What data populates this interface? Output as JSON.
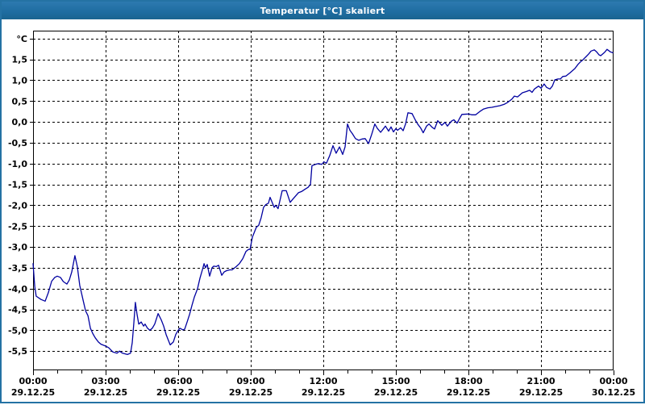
{
  "window": {
    "title": "Temperatur [°C] skaliert"
  },
  "colors": {
    "titlebar": "#1e6ca0",
    "window_border": "#2472a4",
    "line": "#0000a0",
    "grid": "#000000",
    "text": "#000000",
    "plot_background": "#ffffff"
  },
  "chart_data": {
    "type": "line",
    "title": "Temperatur [°C] skaliert",
    "xlabel": "",
    "ylabel": "",
    "y_axis_unit": "°C",
    "ylim": [
      -5.96,
      2.19
    ],
    "xlim_hours": [
      0,
      24
    ],
    "grid": "dashed",
    "legend": "none",
    "y_ticks": [
      {
        "value": 2.0,
        "label": "°C"
      },
      {
        "value": 1.5,
        "label": "1,5"
      },
      {
        "value": 1.0,
        "label": "1,0"
      },
      {
        "value": 0.5,
        "label": "0,5"
      },
      {
        "value": 0.0,
        "label": "0,0"
      },
      {
        "value": -0.5,
        "label": "-0,5"
      },
      {
        "value": -1.0,
        "label": "-1,0"
      },
      {
        "value": -1.5,
        "label": "-1,5"
      },
      {
        "value": -2.0,
        "label": "-2,0"
      },
      {
        "value": -2.5,
        "label": "-2,5"
      },
      {
        "value": -3.0,
        "label": "-3,0"
      },
      {
        "value": -3.5,
        "label": "-3,5"
      },
      {
        "value": -4.0,
        "label": "-4,0"
      },
      {
        "value": -4.5,
        "label": "-4,5"
      },
      {
        "value": -5.0,
        "label": "-5,0"
      },
      {
        "value": -5.5,
        "label": "-5,5"
      }
    ],
    "x_ticks": [
      {
        "hour": 0,
        "time": "00:00",
        "date": "29.12.25"
      },
      {
        "hour": 3,
        "time": "03:00",
        "date": "29.12.25"
      },
      {
        "hour": 6,
        "time": "06:00",
        "date": "29.12.25"
      },
      {
        "hour": 9,
        "time": "09:00",
        "date": "29.12.25"
      },
      {
        "hour": 12,
        "time": "12:00",
        "date": "29.12.25"
      },
      {
        "hour": 15,
        "time": "15:00",
        "date": "29.12.25"
      },
      {
        "hour": 18,
        "time": "18:00",
        "date": "29.12.25"
      },
      {
        "hour": 21,
        "time": "21:00",
        "date": "29.12.25"
      },
      {
        "hour": 24,
        "time": "00:00",
        "date": "30.12.25"
      }
    ],
    "minor_tick_every_hours": 1,
    "series": [
      {
        "name": "Temperatur",
        "points": [
          [
            0.0,
            -3.4
          ],
          [
            0.07,
            -3.95
          ],
          [
            0.13,
            -4.18
          ],
          [
            0.33,
            -4.26
          ],
          [
            0.5,
            -4.3
          ],
          [
            0.63,
            -4.1
          ],
          [
            0.77,
            -3.82
          ],
          [
            0.9,
            -3.73
          ],
          [
            1.0,
            -3.7
          ],
          [
            1.13,
            -3.73
          ],
          [
            1.25,
            -3.83
          ],
          [
            1.4,
            -3.89
          ],
          [
            1.5,
            -3.79
          ],
          [
            1.6,
            -3.6
          ],
          [
            1.73,
            -3.21
          ],
          [
            1.83,
            -3.47
          ],
          [
            1.93,
            -3.92
          ],
          [
            2.07,
            -4.28
          ],
          [
            2.17,
            -4.53
          ],
          [
            2.27,
            -4.65
          ],
          [
            2.37,
            -4.95
          ],
          [
            2.47,
            -5.08
          ],
          [
            2.57,
            -5.18
          ],
          [
            2.7,
            -5.28
          ],
          [
            2.8,
            -5.33
          ],
          [
            3.0,
            -5.38
          ],
          [
            3.13,
            -5.42
          ],
          [
            3.3,
            -5.52
          ],
          [
            3.47,
            -5.55
          ],
          [
            3.57,
            -5.5
          ],
          [
            3.7,
            -5.55
          ],
          [
            3.9,
            -5.58
          ],
          [
            4.03,
            -5.55
          ],
          [
            4.1,
            -5.3
          ],
          [
            4.17,
            -4.8
          ],
          [
            4.23,
            -4.33
          ],
          [
            4.3,
            -4.62
          ],
          [
            4.37,
            -4.85
          ],
          [
            4.47,
            -4.8
          ],
          [
            4.57,
            -4.9
          ],
          [
            4.63,
            -4.85
          ],
          [
            4.73,
            -4.95
          ],
          [
            4.83,
            -5.0
          ],
          [
            4.93,
            -4.95
          ],
          [
            5.03,
            -4.85
          ],
          [
            5.17,
            -4.6
          ],
          [
            5.3,
            -4.75
          ],
          [
            5.4,
            -4.9
          ],
          [
            5.5,
            -5.1
          ],
          [
            5.67,
            -5.35
          ],
          [
            5.8,
            -5.28
          ],
          [
            5.9,
            -5.1
          ],
          [
            6.0,
            -5.0
          ],
          [
            6.07,
            -4.95
          ],
          [
            6.2,
            -4.99
          ],
          [
            6.27,
            -4.97
          ],
          [
            6.37,
            -4.8
          ],
          [
            6.47,
            -4.62
          ],
          [
            6.57,
            -4.4
          ],
          [
            6.67,
            -4.2
          ],
          [
            6.8,
            -4.0
          ],
          [
            6.9,
            -3.75
          ],
          [
            7.0,
            -3.55
          ],
          [
            7.07,
            -3.4
          ],
          [
            7.13,
            -3.5
          ],
          [
            7.2,
            -3.42
          ],
          [
            7.3,
            -3.7
          ],
          [
            7.4,
            -3.5
          ],
          [
            7.47,
            -3.46
          ],
          [
            7.57,
            -3.47
          ],
          [
            7.67,
            -3.44
          ],
          [
            7.8,
            -3.68
          ],
          [
            7.9,
            -3.6
          ],
          [
            8.0,
            -3.57
          ],
          [
            8.13,
            -3.55
          ],
          [
            8.23,
            -3.55
          ],
          [
            8.4,
            -3.47
          ],
          [
            8.53,
            -3.4
          ],
          [
            8.67,
            -3.28
          ],
          [
            8.8,
            -3.11
          ],
          [
            8.9,
            -3.06
          ],
          [
            8.97,
            -3.06
          ],
          [
            9.07,
            -2.76
          ],
          [
            9.23,
            -2.53
          ],
          [
            9.33,
            -2.48
          ],
          [
            9.43,
            -2.3
          ],
          [
            9.53,
            -2.05
          ],
          [
            9.63,
            -1.98
          ],
          [
            9.73,
            -1.95
          ],
          [
            9.8,
            -1.81
          ],
          [
            9.97,
            -2.05
          ],
          [
            10.03,
            -2.0
          ],
          [
            10.13,
            -2.08
          ],
          [
            10.3,
            -1.65
          ],
          [
            10.47,
            -1.65
          ],
          [
            10.63,
            -1.93
          ],
          [
            10.73,
            -1.86
          ],
          [
            10.97,
            -1.7
          ],
          [
            11.1,
            -1.67
          ],
          [
            11.23,
            -1.62
          ],
          [
            11.37,
            -1.57
          ],
          [
            11.47,
            -1.5
          ],
          [
            11.53,
            -1.05
          ],
          [
            11.67,
            -1.02
          ],
          [
            11.8,
            -1.0
          ],
          [
            11.93,
            -1.02
          ],
          [
            12.03,
            -0.96
          ],
          [
            12.13,
            -0.99
          ],
          [
            12.27,
            -0.8
          ],
          [
            12.4,
            -0.57
          ],
          [
            12.53,
            -0.75
          ],
          [
            12.67,
            -0.6
          ],
          [
            12.8,
            -0.78
          ],
          [
            12.9,
            -0.6
          ],
          [
            13.0,
            -0.05
          ],
          [
            13.1,
            -0.2
          ],
          [
            13.2,
            -0.28
          ],
          [
            13.33,
            -0.4
          ],
          [
            13.47,
            -0.44
          ],
          [
            13.6,
            -0.41
          ],
          [
            13.73,
            -0.4
          ],
          [
            13.87,
            -0.52
          ],
          [
            14.0,
            -0.3
          ],
          [
            14.13,
            -0.05
          ],
          [
            14.23,
            -0.15
          ],
          [
            14.37,
            -0.25
          ],
          [
            14.57,
            -0.1
          ],
          [
            14.7,
            -0.22
          ],
          [
            14.8,
            -0.12
          ],
          [
            14.9,
            -0.24
          ],
          [
            15.0,
            -0.16
          ],
          [
            15.07,
            -0.2
          ],
          [
            15.2,
            -0.14
          ],
          [
            15.3,
            -0.21
          ],
          [
            15.4,
            -0.05
          ],
          [
            15.5,
            0.22
          ],
          [
            15.67,
            0.2
          ],
          [
            15.8,
            0.05
          ],
          [
            15.9,
            -0.05
          ],
          [
            16.03,
            -0.15
          ],
          [
            16.13,
            -0.26
          ],
          [
            16.27,
            -0.1
          ],
          [
            16.37,
            -0.05
          ],
          [
            16.5,
            -0.13
          ],
          [
            16.6,
            -0.17
          ],
          [
            16.73,
            0.03
          ],
          [
            16.9,
            -0.08
          ],
          [
            17.03,
            -0.01
          ],
          [
            17.13,
            -0.1
          ],
          [
            17.3,
            0.02
          ],
          [
            17.4,
            0.05
          ],
          [
            17.53,
            -0.03
          ],
          [
            17.63,
            0.08
          ],
          [
            17.73,
            0.18
          ],
          [
            18.0,
            0.19
          ],
          [
            18.13,
            0.17
          ],
          [
            18.3,
            0.17
          ],
          [
            18.47,
            0.25
          ],
          [
            18.63,
            0.31
          ],
          [
            18.8,
            0.34
          ],
          [
            18.97,
            0.35
          ],
          [
            19.13,
            0.37
          ],
          [
            19.3,
            0.39
          ],
          [
            19.47,
            0.42
          ],
          [
            19.63,
            0.47
          ],
          [
            19.8,
            0.55
          ],
          [
            19.9,
            0.62
          ],
          [
            20.03,
            0.6
          ],
          [
            20.23,
            0.7
          ],
          [
            20.4,
            0.73
          ],
          [
            20.53,
            0.76
          ],
          [
            20.63,
            0.71
          ],
          [
            20.73,
            0.79
          ],
          [
            20.9,
            0.86
          ],
          [
            21.0,
            0.81
          ],
          [
            21.13,
            0.91
          ],
          [
            21.23,
            0.83
          ],
          [
            21.37,
            0.79
          ],
          [
            21.47,
            0.86
          ],
          [
            21.57,
            1.01
          ],
          [
            21.7,
            1.03
          ],
          [
            21.8,
            1.03
          ],
          [
            21.9,
            1.09
          ],
          [
            22.03,
            1.1
          ],
          [
            22.2,
            1.18
          ],
          [
            22.3,
            1.23
          ],
          [
            22.4,
            1.28
          ],
          [
            22.53,
            1.38
          ],
          [
            22.63,
            1.44
          ],
          [
            22.73,
            1.49
          ],
          [
            22.87,
            1.57
          ],
          [
            22.97,
            1.63
          ],
          [
            23.07,
            1.7
          ],
          [
            23.2,
            1.73
          ],
          [
            23.3,
            1.68
          ],
          [
            23.4,
            1.61
          ],
          [
            23.47,
            1.59
          ],
          [
            23.63,
            1.67
          ],
          [
            23.73,
            1.74
          ],
          [
            23.87,
            1.68
          ],
          [
            23.97,
            1.66
          ]
        ]
      }
    ]
  }
}
